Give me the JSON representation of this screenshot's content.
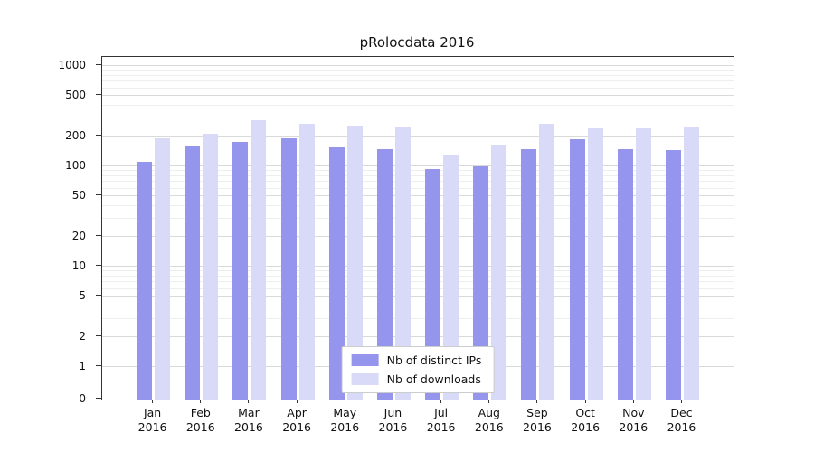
{
  "chart_data": {
    "type": "bar",
    "title": "pRolocdata 2016",
    "yscale": "log",
    "grid": true,
    "legend_position": "bottom-center",
    "categories": [
      "Jan 2016",
      "Feb 2016",
      "Mar 2016",
      "Apr 2016",
      "May 2016",
      "Jun 2016",
      "Jul 2016",
      "Aug 2016",
      "Sep 2016",
      "Oct 2016",
      "Nov 2016",
      "Dec 2016"
    ],
    "series": [
      {
        "name": "Nb of distinct IPs",
        "color": "#9595ee",
        "values": [
          110,
          160,
          175,
          190,
          155,
          150,
          95,
          100,
          150,
          185,
          150,
          145
        ]
      },
      {
        "name": "Nb of downloads",
        "color": "#d9d9f8",
        "values": [
          190,
          210,
          290,
          265,
          255,
          250,
          130,
          165,
          265,
          240,
          240,
          245
        ]
      }
    ],
    "y_ticks": [
      0,
      1,
      2,
      5,
      10,
      20,
      50,
      100,
      200,
      500,
      1000
    ],
    "ylim": [
      0,
      1000
    ]
  },
  "colors": {
    "grid_major": "#d9d9d9",
    "grid_minor": "#eeeeee",
    "axis": "#333333",
    "legend_border": "#cccccc",
    "background": "#ffffff"
  }
}
